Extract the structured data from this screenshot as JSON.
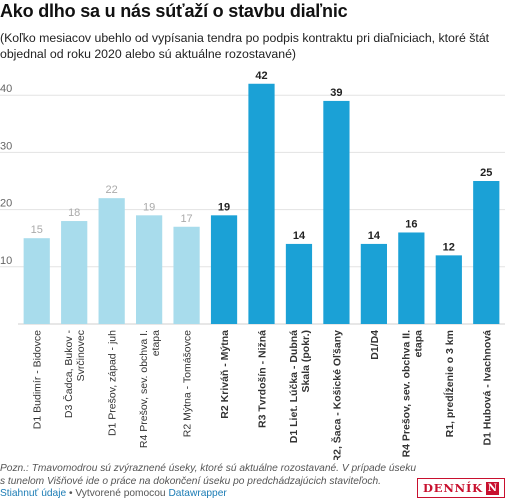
{
  "title": "Ako dlho sa u nás súťaží o stavbu diaľnic",
  "subtitle": "(Koľko mesiacov ubehlo od vypísania tendra po podpis kontraktu pri diaľniciach, ktoré štát objednal od roku 2020 alebo sú aktuálne rozostavané)",
  "note": "Pozn.: Tmavomodrou sú zvýraznené úseky, ktoré sú aktuálne rozostavané. V prípade úseku s tunelom Višňové ide o práce na dokončení úseku po predchádzajúcich staviteľoch.",
  "footer": {
    "download": "Stiahnuť údaje",
    "separator": " • Vytvorené pomocou ",
    "tool": "Datawrapper"
  },
  "logo": {
    "text": "DENNÍK",
    "mark": "N"
  },
  "colors": {
    "light": "#a8dcec",
    "dark": "#1ba1d6",
    "grid": "#e3e3e3",
    "logo": "#c8102e",
    "link": "#1b7cb5"
  },
  "chart_data": {
    "type": "bar",
    "title": "",
    "xlabel": "",
    "ylabel": "",
    "ylim": [
      0,
      45
    ],
    "yticks": [
      10,
      20,
      30,
      40
    ],
    "grid": true,
    "categories": [
      "D1 Budimír - Bidovce",
      "D3 Čadca, Bukov - Svrčinovec",
      "D1 Prešov, západ - juh",
      "R4 Prešov, sev. obchva I. etapa",
      "R2 Mýtna - Tomášovce",
      "R2 Kriváň - Mýtna",
      "R3 Tvrdošín - Nižná",
      "D1 Liet. Lúčka - Dubná Skala (pokr.)",
      "R2, Šaca - Košické Oľšany",
      "D1/D4",
      "R4 Prešov, sev. obchva II. etapa",
      "R1, predĺženie o 3 km",
      "D1 Hubová - Ivachnová"
    ],
    "label_lines": [
      [
        "D1 Budimír - Bidovce"
      ],
      [
        "D3 Čadca, Bukov -",
        "Svrčinovec"
      ],
      [
        "D1 Prešov, západ - juh"
      ],
      [
        "R4 Prešov, sev. obchva I.",
        "etapa"
      ],
      [
        "R2 Mýtna - Tomášovce"
      ],
      [
        "R2 Kriváň - Mýtna"
      ],
      [
        "R3 Tvrdošín - Nižná"
      ],
      [
        "D1 Liet. Lúčka - Dubná",
        "Skala (pokr.)"
      ],
      [
        "R2, Šaca - Košické Oľšany"
      ],
      [
        "D1/D4"
      ],
      [
        "R4 Prešov, sev. obchva II.",
        "etapa"
      ],
      [
        "R1, predĺženie o 3 km"
      ],
      [
        "D1 Hubová - Ivachnová"
      ]
    ],
    "values": [
      15,
      18,
      22,
      19,
      17,
      19,
      42,
      14,
      39,
      14,
      16,
      12,
      25
    ],
    "under_construction": [
      false,
      false,
      false,
      false,
      false,
      true,
      true,
      true,
      true,
      true,
      true,
      true,
      true
    ]
  }
}
